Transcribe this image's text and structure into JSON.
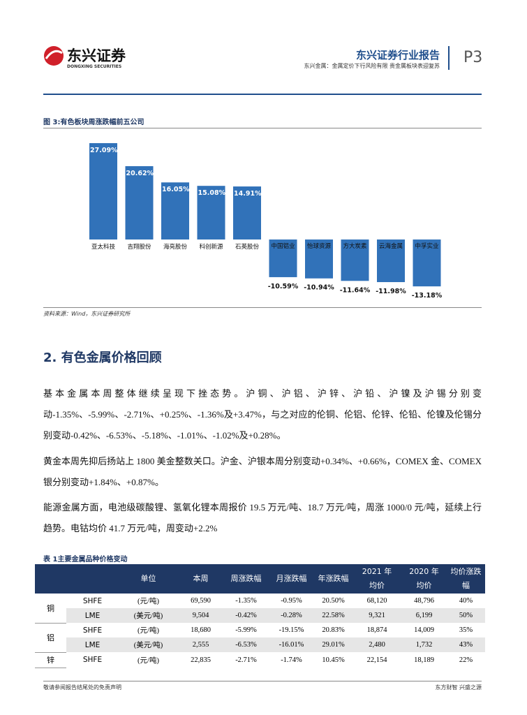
{
  "header": {
    "logo_name": "东兴证券",
    "logo_en": "DONGXING SECURITIES",
    "title": "东兴证券行业报告",
    "subtitle": "东兴金属：金属定价下行风险有限 贵金属板块表迎复苏",
    "page": "P3"
  },
  "chart_data": {
    "type": "bar",
    "title": "图 3:有色板块周涨跌幅前五公司",
    "categories": [
      "亚太科技",
      "吉翔股份",
      "海亮股份",
      "科创新源",
      "石英股份",
      "中国铝业",
      "怡球资源",
      "方大炭素",
      "云海金属",
      "中孚实业"
    ],
    "values": [
      27.09,
      20.62,
      16.05,
      15.08,
      14.91,
      -10.59,
      -10.94,
      -11.64,
      -11.98,
      -13.18
    ],
    "value_labels": [
      "27.09%",
      "20.62%",
      "16.05%",
      "15.08%",
      "14.91%",
      "-10.59%",
      "-10.94%",
      "-11.64%",
      "-11.98%",
      "-13.18%"
    ],
    "color": "#3172b9",
    "source": "资料来源：Wind，东兴证券研究所"
  },
  "section": {
    "heading": "2. 有色金属价格回顾",
    "paragraphs": [
      "基本金属本周整体继续呈现下挫态势。沪铜、沪铝、沪锌、沪铅、沪镍及沪锡分别变动-1.35%、-5.99%、-2.71%、+0.25%、-1.36%及+3.47%，与之对应的伦铜、伦铝、伦锌、伦铅、伦镍及伦锡分别变动-0.42%、-6.53%、-5.18%、-1.01%、-1.02%及+0.28%。",
      "黄金本周先抑后扬站上 1800 美金整数关口。沪金、沪银本周分别变动+0.34%、+0.66%，COMEX 金、COMEX 银分别变动+1.84%、+0.87%。",
      "能源金属方面，电池级碳酸锂、氢氧化锂本周报价 19.5 万元/吨、18.7 万元/吨，周涨 1000/0 元/吨，延续上行趋势。电钴均价 41.7 万元/吨，周变动+2.2%"
    ]
  },
  "table": {
    "title": "表 1主要金属品种价格变动",
    "header": [
      "单位",
      "本周",
      "周涨跌幅",
      "月涨跌幅",
      "年涨跌幅",
      "2021 年均价",
      "2020 年均价",
      "均价涨跌幅"
    ],
    "groups": [
      {
        "name": "铜",
        "rows": [
          [
            "SHFE",
            "(元/吨)",
            "69,590",
            "-1.35%",
            "-0.95%",
            "20.50%",
            "68,120",
            "48,796",
            "40%"
          ],
          [
            "LME",
            "(美元/吨)",
            "9,504",
            "-0.42%",
            "-0.28%",
            "22.58%",
            "9,321",
            "6,199",
            "50%"
          ]
        ]
      },
      {
        "name": "铝",
        "rows": [
          [
            "SHFE",
            "(元/吨)",
            "18,680",
            "-5.99%",
            "-19.15%",
            "20.83%",
            "18,874",
            "14,009",
            "35%"
          ],
          [
            "LME",
            "(美元/吨)",
            "2,555",
            "-6.53%",
            "-16.01%",
            "29.01%",
            "2,480",
            "1,732",
            "43%"
          ]
        ]
      },
      {
        "name": "锌",
        "rows": [
          [
            "SHFE",
            "(元/吨)",
            "22,835",
            "-2.71%",
            "-1.74%",
            "10.45%",
            "22,154",
            "18,189",
            "22%"
          ]
        ]
      }
    ]
  },
  "footer": {
    "left": "敬请参阅报告结尾处的免责声明",
    "right": "东方财智 兴盛之源"
  }
}
